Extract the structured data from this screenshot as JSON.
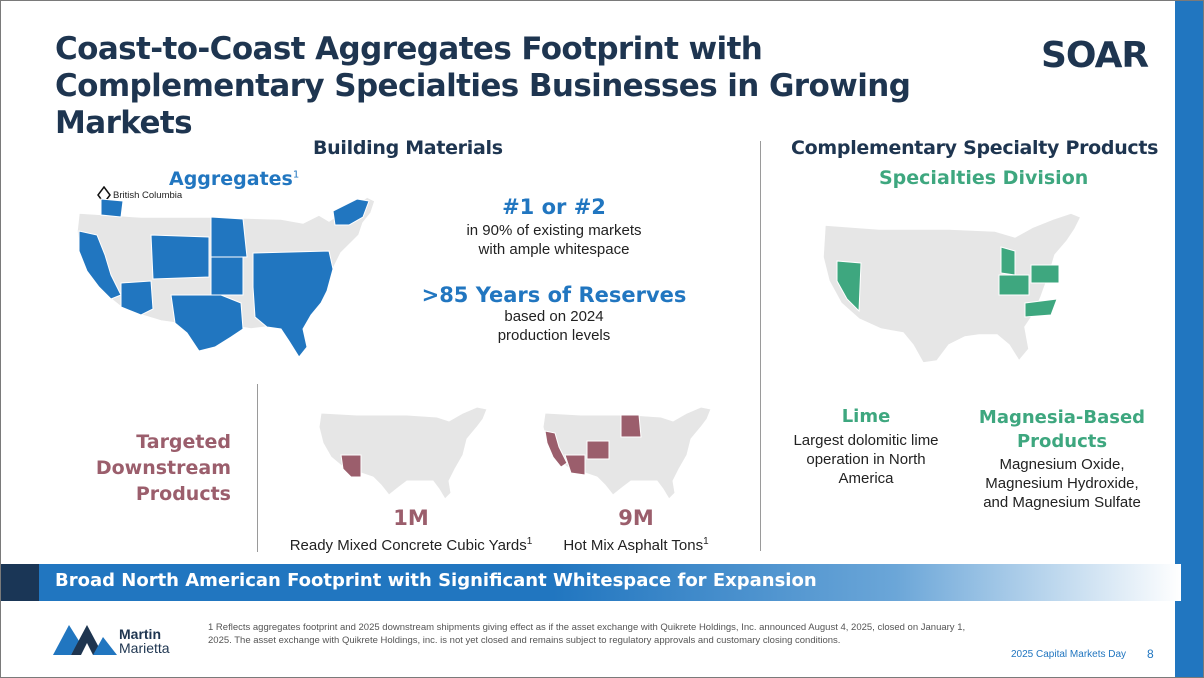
{
  "title": "Coast-to-Coast Aggregates Footprint with Complementary Specialties Businesses in Growing Markets",
  "brand_logo": "SOAR",
  "left_section": {
    "heading": "Building Materials",
    "aggregates_label": "Aggregates",
    "aggregates_sup": "1",
    "bc_label": "British Columbia",
    "stat1_value": "#1 or #2",
    "stat1_line1": "in 90% of existing markets",
    "stat1_line2": "with ample whitespace",
    "stat2_value": ">85 Years of Reserves",
    "stat2_line1": "based on 2024",
    "stat2_line2": "production levels"
  },
  "downstream": {
    "label_line1": "Targeted",
    "label_line2": "Downstream",
    "label_line3": "Products",
    "concrete_value": "1M",
    "concrete_label": "Ready Mixed Concrete Cubic Yards",
    "concrete_sup": "1",
    "asphalt_value": "9M",
    "asphalt_label": "Hot Mix Asphalt Tons",
    "asphalt_sup": "1"
  },
  "right_section": {
    "heading": "Complementary Specialty Products",
    "subheading": "Specialties Division",
    "lime_title": "Lime",
    "lime_line1": "Largest dolomitic lime",
    "lime_line2": "operation in North",
    "lime_line3": "America",
    "magnesia_title_line1": "Magnesia-Based",
    "magnesia_title_line2": "Products",
    "magnesia_line1": "Magnesium Oxide,",
    "magnesia_line2": "Magnesium Hydroxide,",
    "magnesia_line3": "and Magnesium Sulfate"
  },
  "banner_text": "Broad North American Footprint with Significant Whitespace for Expansion",
  "footer": {
    "company_line1": "Martin",
    "company_line2": "Marietta",
    "footnote": "1  Reflects aggregates footprint and 2025 downstream shipments giving effect as if the asset exchange with Quikrete Holdings, Inc. announced August 4, 2025, closed on January 1, 2025. The asset exchange with Quikrete Holdings, inc. is not yet closed and remains subject to regulatory approvals and customary closing conditions.",
    "event": "2025 Capital Markets Day",
    "page_number": "8"
  },
  "colors": {
    "navy": "#1e3550",
    "blue": "#2176c0",
    "green": "#3ea77f",
    "mauve": "#9b5e6c",
    "map_gray": "#e6e6e6"
  }
}
